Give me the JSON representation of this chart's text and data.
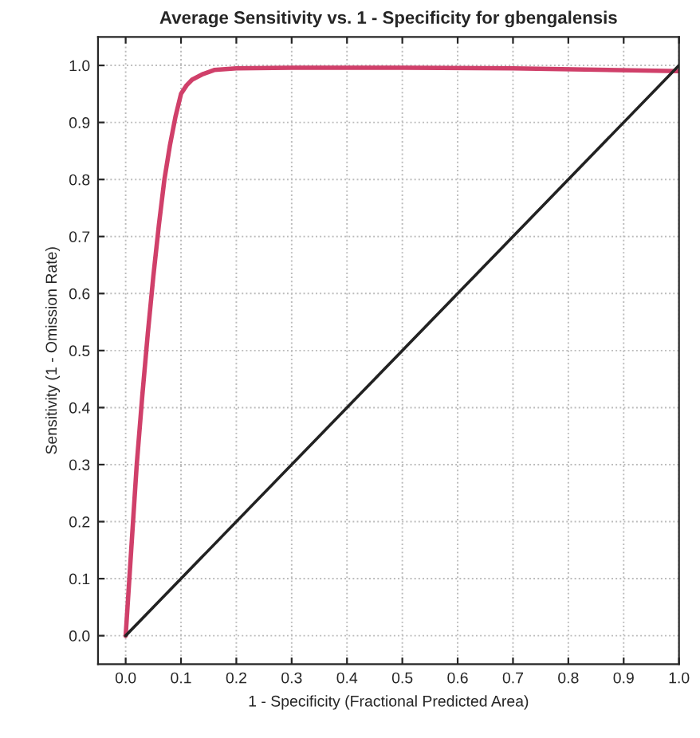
{
  "chart_data": {
    "type": "line",
    "title": "Average Sensitivity vs. 1 - Specificity for gbengalensis",
    "xlabel": "1 - Specificity (Fractional Predicted Area)",
    "ylabel": "Sensitivity (1 - Omission Rate)",
    "series": [
      {
        "color": "#d0406a",
        "x": [
          0,
          0.01,
          0.02,
          0.03,
          0.04,
          0.05,
          0.06,
          0.07,
          0.08,
          0.09,
          0.1,
          0.11,
          0.12,
          0.14,
          0.16,
          0.2,
          0.3,
          0.5,
          0.7,
          1.0
        ],
        "values": [
          0,
          0.15,
          0.3,
          0.42,
          0.53,
          0.63,
          0.72,
          0.8,
          0.86,
          0.91,
          0.95,
          0.965,
          0.975,
          0.985,
          0.992,
          0.995,
          0.996,
          0.996,
          0.995,
          0.99
        ]
      },
      {
        "color": "#222222",
        "x": [
          0,
          1.0
        ],
        "values": [
          0,
          1.0
        ]
      }
    ],
    "xlim": [
      -0.05,
      1.0
    ],
    "ylim": [
      -0.05,
      1.05
    ],
    "xticks": [
      {
        "value": 0,
        "label": "0.0"
      },
      0.1,
      0.2,
      0.3,
      0.4,
      0.5,
      0.6,
      0.7,
      0.8,
      0.9,
      {
        "value": 1.0,
        "label": "1.0"
      }
    ],
    "yticks": [
      {
        "value": 0,
        "label": "0.0"
      },
      0.1,
      0.2,
      0.3,
      0.4,
      0.5,
      0.6,
      0.7,
      0.8,
      0.9,
      {
        "value": 1.0,
        "label": "1.0"
      }
    ],
    "grid": true,
    "line_style": "solid"
  }
}
